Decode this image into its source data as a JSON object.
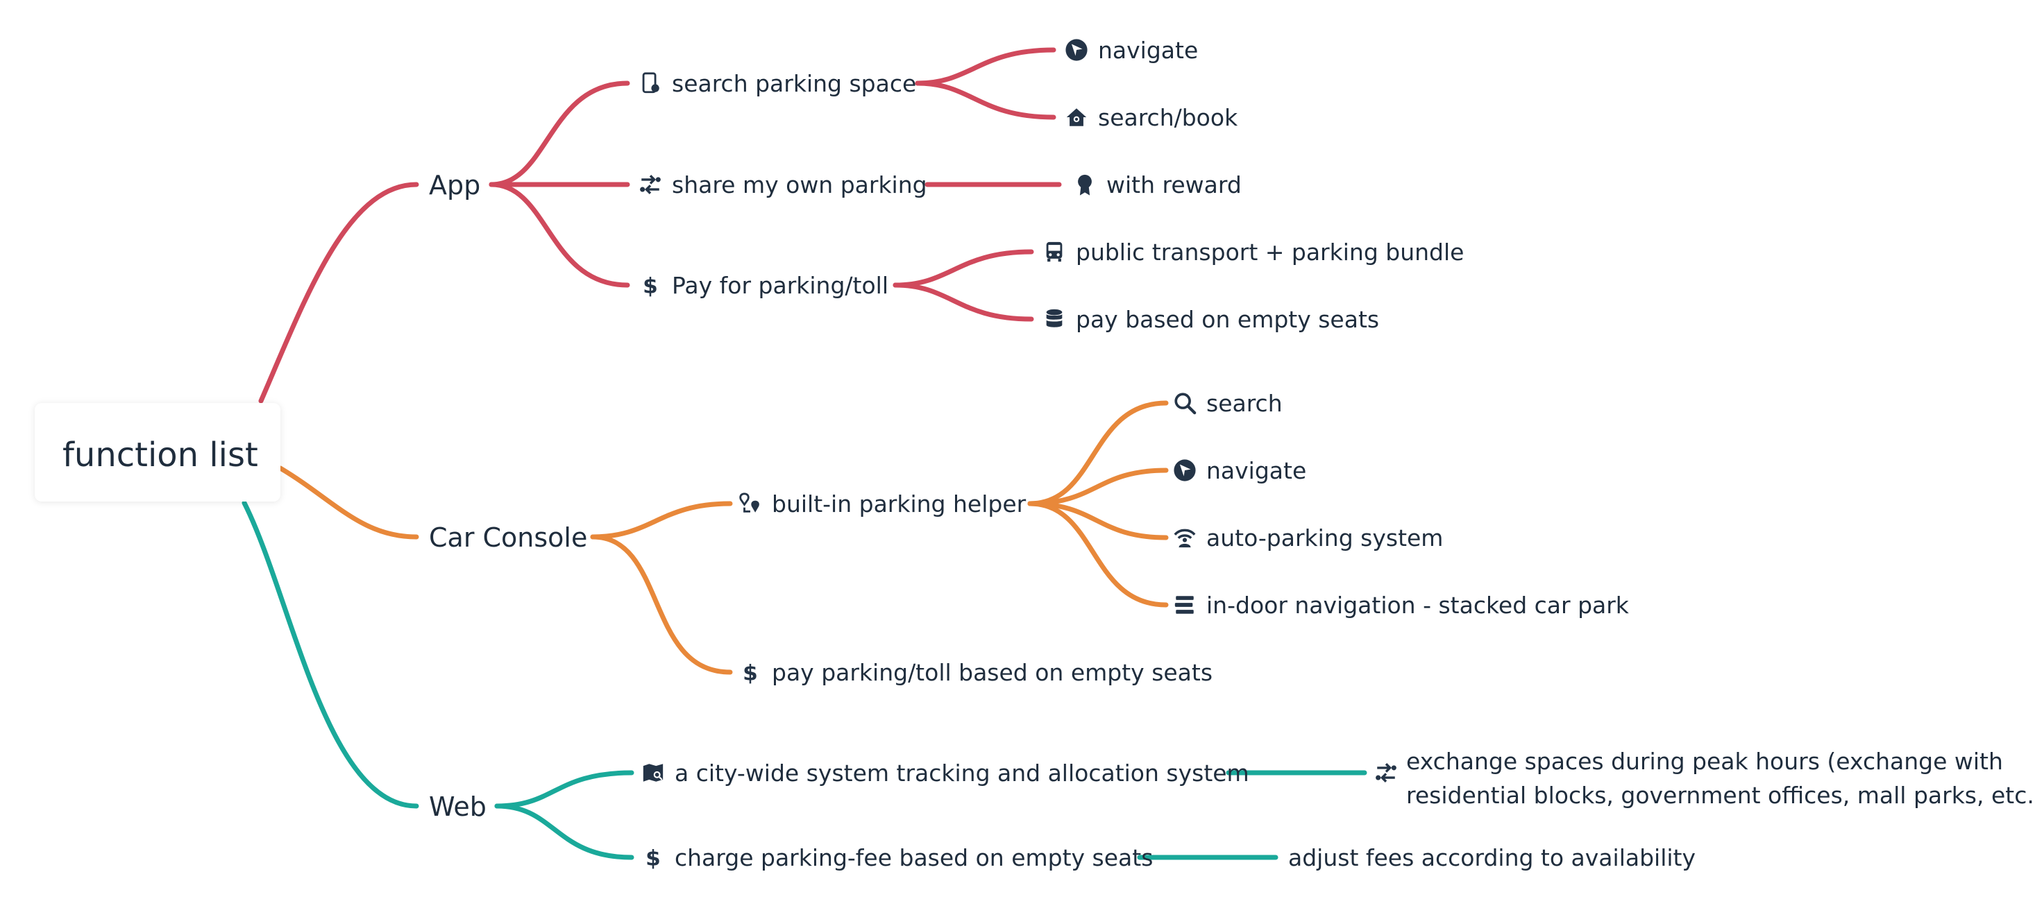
{
  "root": {
    "label": "function list"
  },
  "colors": {
    "app": "#d0495c",
    "car": "#e8883a",
    "web": "#1aa99a",
    "text": "#1f2d3d",
    "icon": "#243447"
  },
  "branches": [
    {
      "label": "App",
      "children": [
        {
          "label": "search parking space",
          "icon": "phone-pin-icon",
          "children": [
            {
              "label": "navigate",
              "icon": "navigate-icon"
            },
            {
              "label": "search/book",
              "icon": "home-search-icon"
            }
          ]
        },
        {
          "label": "share my own parking",
          "icon": "exchange-icon",
          "children": [
            {
              "label": "with reward",
              "icon": "award-icon"
            }
          ]
        },
        {
          "label": "Pay for parking/toll",
          "icon": "dollar-icon",
          "children": [
            {
              "label": "public transport + parking bundle",
              "icon": "bus-icon"
            },
            {
              "label": "pay based on empty seats",
              "icon": "database-icon"
            }
          ]
        }
      ]
    },
    {
      "label": "Car Console",
      "children": [
        {
          "label": "built-in parking helper",
          "icon": "map-pin-route-icon",
          "children": [
            {
              "label": "search",
              "icon": "magnifier-icon"
            },
            {
              "label": "navigate",
              "icon": "navigate-icon"
            },
            {
              "label": "auto-parking system",
              "icon": "wifi-person-icon"
            },
            {
              "label": "in-door navigation - stacked car park",
              "icon": "layers-icon"
            }
          ]
        },
        {
          "label": "pay parking/toll based on empty seats",
          "icon": "dollar-icon",
          "children": []
        }
      ]
    },
    {
      "label": "Web",
      "children": [
        {
          "label": "a city-wide system tracking and allocation system",
          "icon": "map-search-icon",
          "children": [
            {
              "label_lines": [
                "exchange spaces during peak hours (exchange with",
                "residential blocks, government offices, mall parks, etc.)"
              ],
              "icon": "exchange-icon"
            }
          ]
        },
        {
          "label": "charge parking-fee based on empty seats",
          "icon": "dollar-icon",
          "children": [
            {
              "label": "adjust fees according to availability"
            }
          ]
        }
      ]
    }
  ]
}
